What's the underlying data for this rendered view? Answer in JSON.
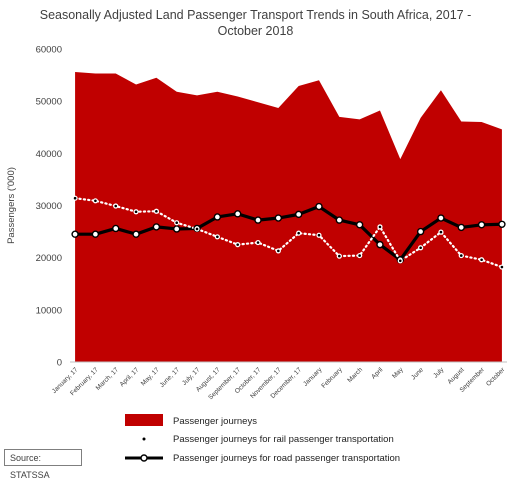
{
  "chart_data": {
    "type": "area",
    "title_line1": "Seasonally Adjusted Land Passenger Transport Trends in South Africa, 2017 -",
    "title_line2": "October 2018",
    "xlabel": "",
    "ylabel": "Passengers ('000)",
    "ylim": [
      0,
      60000
    ],
    "yticks": [
      "0",
      "10000",
      "20000",
      "30000",
      "40000",
      "50000",
      "60000"
    ],
    "grid": false,
    "legend_position": "bottom",
    "categories": [
      "January, 17",
      "February, 17",
      "March, 17",
      "April, 17",
      "May, 17",
      "June, 17",
      "July, 17",
      "August, 17",
      "September, 17",
      "October, 17",
      "November, 17",
      "December, 17",
      "January",
      "February",
      "March",
      "April",
      "May",
      "June",
      "July",
      "August",
      "September",
      "October"
    ],
    "series": [
      {
        "name": "Passenger journeys",
        "kind": "area",
        "color": "#c00000",
        "values": [
          55600,
          55300,
          55300,
          53200,
          54500,
          51800,
          51100,
          51800,
          50900,
          49800,
          48700,
          52900,
          54000,
          47000,
          46500,
          48200,
          38900,
          46800,
          52100,
          46100,
          46000,
          44600
        ]
      },
      {
        "name": "Passenger journeys for rail passenger transportation",
        "kind": "dotted-line",
        "color": "#ffffff",
        "values": [
          31400,
          30900,
          29900,
          28800,
          28900,
          26700,
          25500,
          24000,
          22500,
          22900,
          21300,
          24700,
          24300,
          20300,
          20400,
          25900,
          19400,
          21900,
          24900,
          20400,
          19600,
          18200
        ]
      },
      {
        "name": "Passenger journeys for road passenger transportation",
        "kind": "line",
        "color": "#000000",
        "values": [
          24500,
          24500,
          25600,
          24500,
          25900,
          25500,
          25600,
          27800,
          28400,
          27200,
          27600,
          28300,
          29800,
          27200,
          26300,
          22500,
          19600,
          25000,
          27600,
          25800,
          26300,
          26400
        ]
      }
    ]
  },
  "source": "Source: STATSSA"
}
